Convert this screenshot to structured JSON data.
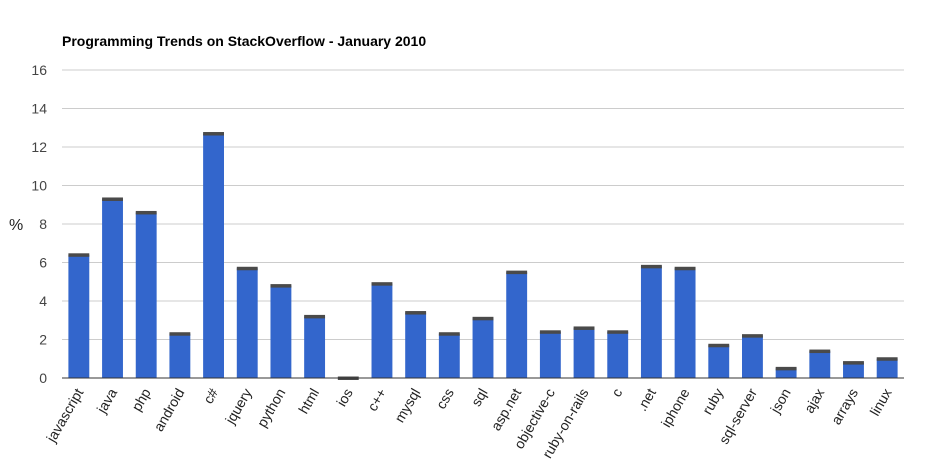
{
  "chart_data": {
    "type": "bar",
    "title": "Programming Trends on StackOverflow - January 2010",
    "xlabel": "",
    "ylabel": "%",
    "ylim": [
      0,
      16
    ],
    "yticks": [
      0,
      2,
      4,
      6,
      8,
      10,
      12,
      14,
      16
    ],
    "grid": true,
    "categories": [
      "javascript",
      "java",
      "php",
      "android",
      "c#",
      "jquery",
      "python",
      "html",
      "ios",
      "c++",
      "mysql",
      "css",
      "sql",
      "asp.net",
      "objective-c",
      "ruby-on-rails",
      "c",
      ".net",
      "iphone",
      "ruby",
      "sql-server",
      "json",
      "ajax",
      "arrays",
      "linux"
    ],
    "values": [
      6.4,
      9.3,
      8.6,
      2.3,
      12.7,
      5.7,
      4.8,
      3.2,
      0.0,
      4.9,
      3.4,
      2.3,
      3.1,
      5.5,
      2.4,
      2.6,
      2.4,
      5.8,
      5.7,
      1.7,
      2.2,
      0.5,
      1.4,
      0.8,
      1.0
    ],
    "colors": {
      "bar": "#3366cc",
      "cap": "#4a4a4a",
      "grid": "#cccccc",
      "axis": "#333333"
    }
  }
}
